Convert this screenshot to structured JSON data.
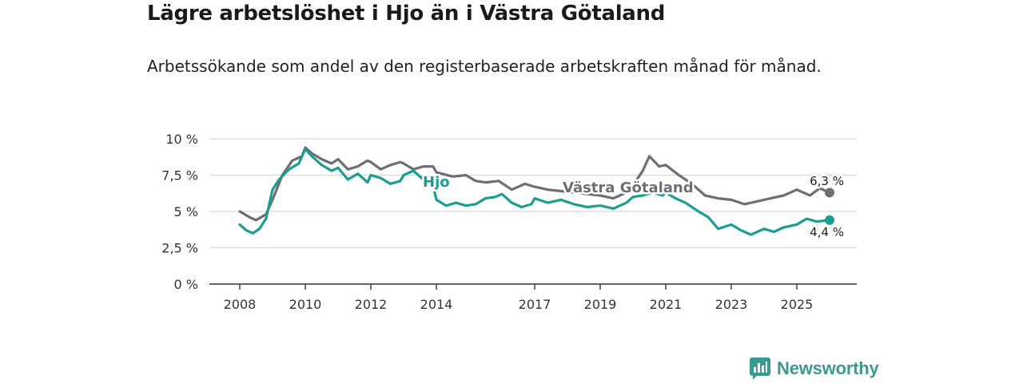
{
  "header": {
    "title": "Lägre arbetslöshet i Hjo än i Västra Götaland",
    "subtitle": "Arbetssökande som andel av den registerbaserade arbetskraften månad för månad."
  },
  "brand": {
    "name": "Newsworthy",
    "color": "#3a9a91"
  },
  "chart_data": {
    "type": "line",
    "title": "Lägre arbetslöshet i Hjo än i Västra Götaland",
    "subtitle": "Arbetssökande som andel av den registerbaserade arbetskraften månad för månad.",
    "xlabel": "",
    "ylabel": "",
    "ylim": [
      0,
      10
    ],
    "xlim": [
      2007.5,
      2026.6
    ],
    "y_ticks": [
      0,
      2.5,
      5,
      7.5,
      10
    ],
    "y_tick_labels": [
      "0 %",
      "2,5 %",
      "5 %",
      "7,5 %",
      "10 %"
    ],
    "x_ticks": [
      2008,
      2010,
      2012,
      2014,
      2017,
      2019,
      2021,
      2023,
      2025
    ],
    "x_tick_labels": [
      "2008",
      "2010",
      "2012",
      "2014",
      "2017",
      "2019",
      "2021",
      "2023",
      "2025"
    ],
    "grid": true,
    "series": [
      {
        "name": "Västra Götaland",
        "color": "#6e6e73",
        "end_label": "6,3 %",
        "x": [
          2008.0,
          2008.3,
          2008.5,
          2008.8,
          2009.0,
          2009.3,
          2009.6,
          2009.9,
          2010.0,
          2010.2,
          2010.5,
          2010.8,
          2011.0,
          2011.3,
          2011.6,
          2011.9,
          2012.0,
          2012.3,
          2012.6,
          2012.9,
          2013.0,
          2013.3,
          2013.6,
          2013.9,
          2014.0,
          2014.5,
          2014.9,
          2015.2,
          2015.5,
          2015.9,
          2016.3,
          2016.7,
          2017.0,
          2017.4,
          2017.8,
          2018.2,
          2018.6,
          2019.0,
          2019.4,
          2019.8,
          2020.0,
          2020.3,
          2020.5,
          2020.8,
          2021.0,
          2021.4,
          2021.8,
          2022.2,
          2022.6,
          2023.0,
          2023.4,
          2023.8,
          2024.2,
          2024.6,
          2025.0,
          2025.4,
          2025.7,
          2026.0
        ],
        "values": [
          5.0,
          4.6,
          4.4,
          4.8,
          5.8,
          7.5,
          8.5,
          8.8,
          9.4,
          9.0,
          8.6,
          8.3,
          8.6,
          7.9,
          8.1,
          8.5,
          8.4,
          7.9,
          8.2,
          8.4,
          8.3,
          7.9,
          8.1,
          8.1,
          7.7,
          7.4,
          7.5,
          7.1,
          7.0,
          7.1,
          6.5,
          6.9,
          6.7,
          6.5,
          6.4,
          6.3,
          6.2,
          6.1,
          5.9,
          6.3,
          6.8,
          7.8,
          8.8,
          8.1,
          8.2,
          7.5,
          6.9,
          6.1,
          5.9,
          5.8,
          5.5,
          5.7,
          5.9,
          6.1,
          6.5,
          6.1,
          6.6,
          6.3
        ]
      },
      {
        "name": "Hjo",
        "color": "#1a9e92",
        "end_label": "4,4 %",
        "x": [
          2008.0,
          2008.2,
          2008.4,
          2008.6,
          2008.8,
          2009.0,
          2009.2,
          2009.5,
          2009.8,
          2010.0,
          2010.2,
          2010.5,
          2010.8,
          2011.0,
          2011.3,
          2011.6,
          2011.9,
          2012.0,
          2012.3,
          2012.6,
          2012.9,
          2013.0,
          2013.3,
          2013.6,
          2013.9,
          2014.0,
          2014.3,
          2014.6,
          2014.9,
          2015.2,
          2015.5,
          2015.8,
          2016.0,
          2016.3,
          2016.6,
          2016.9,
          2017.0,
          2017.4,
          2017.8,
          2018.2,
          2018.6,
          2019.0,
          2019.4,
          2019.8,
          2020.0,
          2020.3,
          2020.6,
          2020.9,
          2021.0,
          2021.3,
          2021.6,
          2022.0,
          2022.3,
          2022.6,
          2023.0,
          2023.3,
          2023.6,
          2024.0,
          2024.3,
          2024.6,
          2025.0,
          2025.3,
          2025.6,
          2026.0
        ],
        "values": [
          4.1,
          3.7,
          3.5,
          3.8,
          4.5,
          6.5,
          7.2,
          7.9,
          8.3,
          9.3,
          8.8,
          8.2,
          7.8,
          8.0,
          7.2,
          7.6,
          7.0,
          7.5,
          7.3,
          6.9,
          7.1,
          7.5,
          7.8,
          7.2,
          6.8,
          5.8,
          5.4,
          5.6,
          5.4,
          5.5,
          5.9,
          6.0,
          6.2,
          5.6,
          5.3,
          5.5,
          5.9,
          5.6,
          5.8,
          5.5,
          5.3,
          5.4,
          5.2,
          5.6,
          6.0,
          6.1,
          6.3,
          6.1,
          6.3,
          5.9,
          5.6,
          5.0,
          4.6,
          3.8,
          4.1,
          3.7,
          3.4,
          3.8,
          3.6,
          3.9,
          4.1,
          4.5,
          4.3,
          4.4
        ]
      }
    ]
  }
}
